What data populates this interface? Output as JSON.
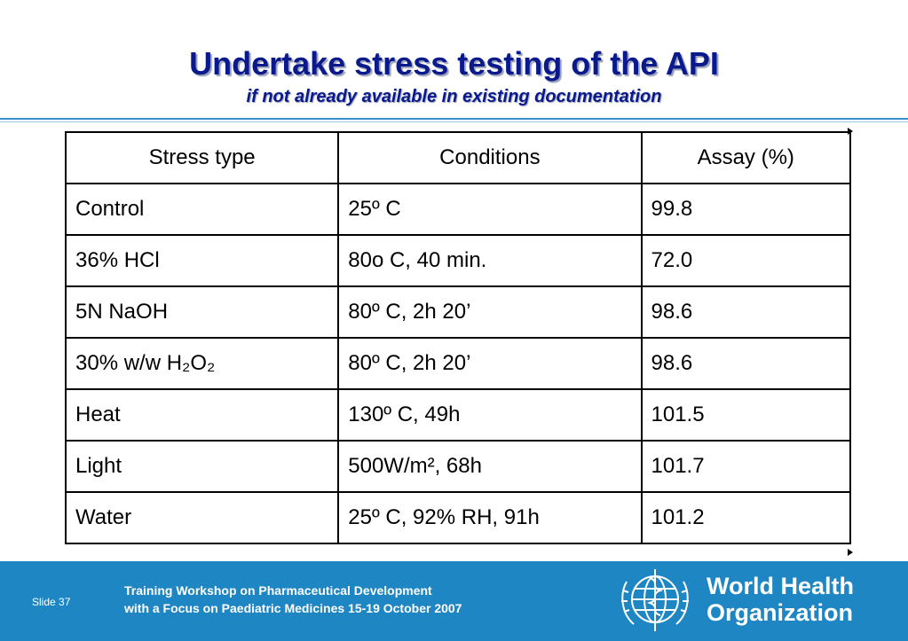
{
  "slide": {
    "title": "Undertake stress testing of the API",
    "subtitle": "if not already available in existing documentation"
  },
  "table": {
    "headers": [
      "Stress type",
      "Conditions",
      "Assay (%)"
    ],
    "rows": [
      {
        "stress_type": "Control",
        "conditions": "25º C",
        "assay": "99.8"
      },
      {
        "stress_type": "36% HCl",
        "conditions": "80o C, 40 min.",
        "assay": "72.0"
      },
      {
        "stress_type": "5N NaOH",
        "conditions": "80º C, 2h 20’",
        "assay": "98.6"
      },
      {
        "stress_type": "30% w/w H₂O₂",
        "conditions": "80º C, 2h 20’",
        "assay": "98.6"
      },
      {
        "stress_type": "Heat",
        "conditions": "130º C, 49h",
        "assay": "101.5"
      },
      {
        "stress_type": "Light",
        "conditions": "500W/m², 68h",
        "assay": "101.7"
      },
      {
        "stress_type": "Water",
        "conditions": "25º C, 92% RH, 91h",
        "assay": "101.2"
      }
    ]
  },
  "footer": {
    "slide_label": "Slide 37",
    "line1": "Training Workshop on Pharmaceutical Development",
    "line2": "with a Focus on Paediatric Medicines  15-19 October 2007",
    "org_line1": "World Health",
    "org_line2": "Organization"
  },
  "colors": {
    "title": "#0a1a8c",
    "footer_bg": "#1f86c4",
    "rule": "#3a8fc8"
  },
  "icons": [
    "who-emblem-icon"
  ]
}
